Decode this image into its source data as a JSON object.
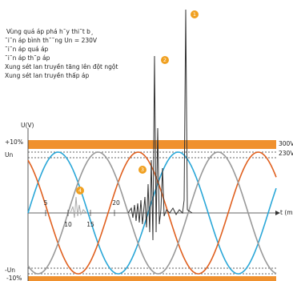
{
  "legend": [
    "Vùng quá áp phá h¯y thi˜t b¸",
    "˜i˜n áp bình th˜˜ng Un = 230V",
    "˜i˜n áp quá áp",
    "˜i˜n áp th˜p áp",
    "Xung sét lan truyền tăng lên đột ngột",
    "Xung sét lan truyền thấp áp"
  ],
  "axis": {
    "y_label": "U(V)",
    "x_label": "t (ms)",
    "plus10": "+10%",
    "un": "Un",
    "minus_un": "-Un",
    "minus10": "-10%",
    "v300": "300V",
    "v230": "230V",
    "ticks": [
      "5",
      "10",
      "15",
      "20"
    ]
  },
  "markers": [
    "1",
    "2",
    "3",
    "4"
  ]
}
